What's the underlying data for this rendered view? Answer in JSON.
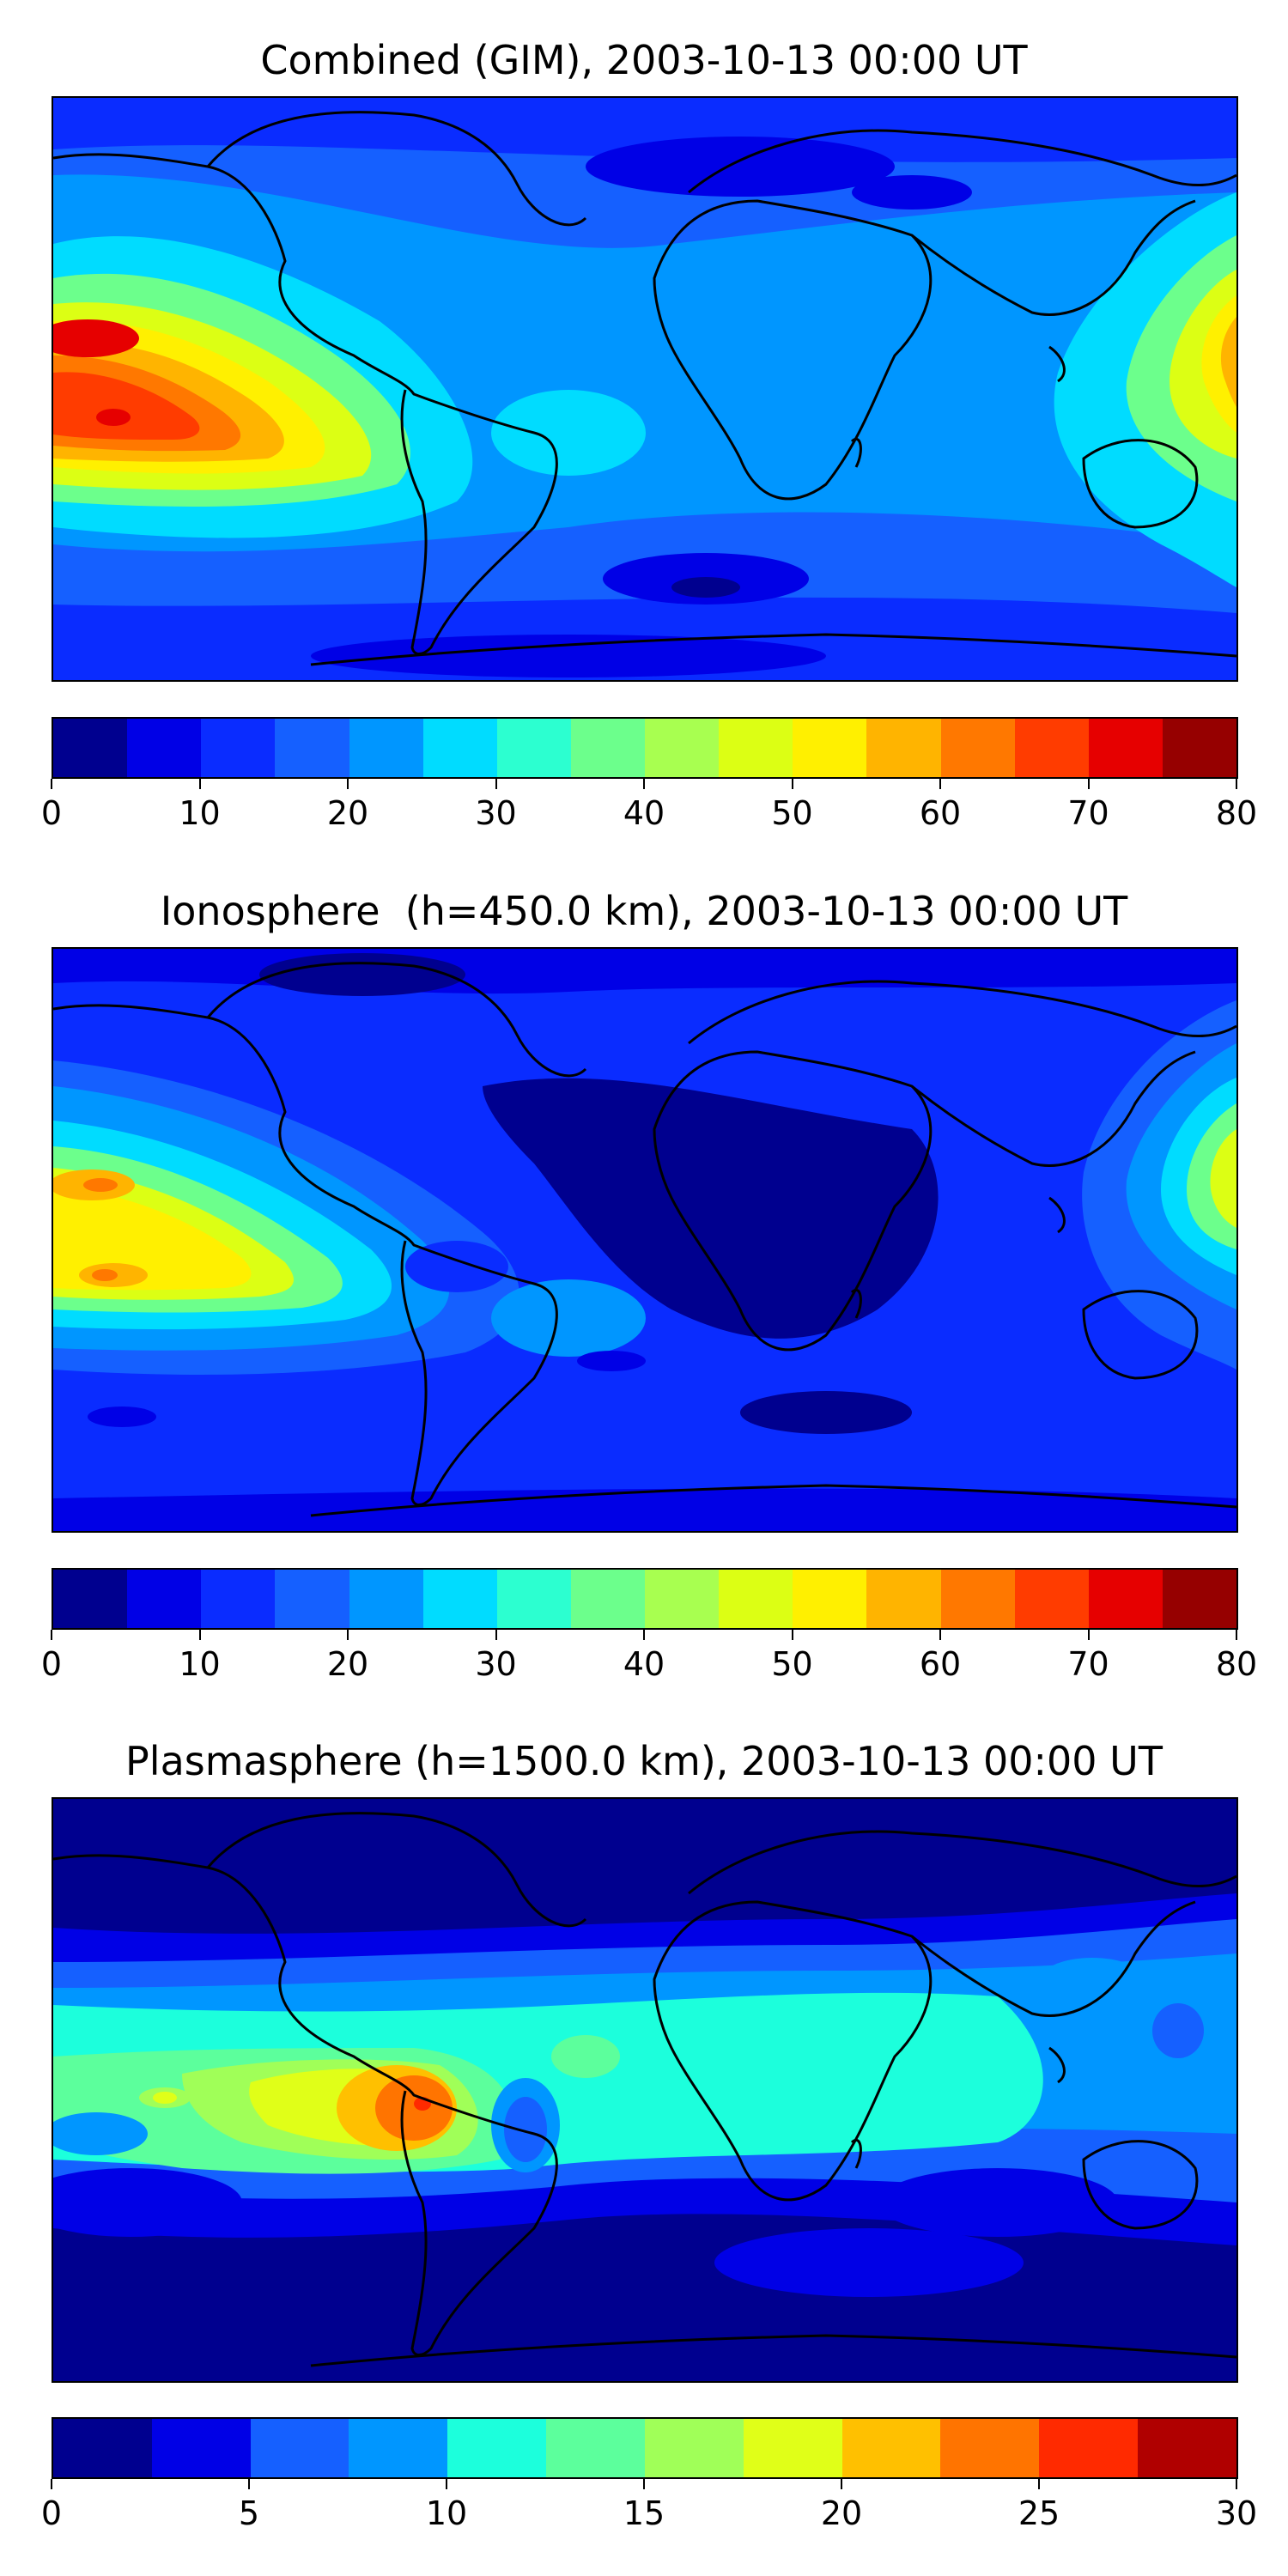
{
  "panels": [
    {
      "title": "Combined (GIM), 2003-10-13 00:00 UT",
      "colorbar": {
        "min": 0,
        "max": 80,
        "tick_labels": [
          "0",
          "10",
          "20",
          "30",
          "40",
          "50",
          "60",
          "70",
          "80"
        ],
        "colors": [
          "#00008f",
          "#0000e6",
          "#0a2cff",
          "#1560ff",
          "#0096ff",
          "#00dcff",
          "#2cffd0",
          "#6cff8c",
          "#a8ff50",
          "#dcff14",
          "#fff000",
          "#ffb400",
          "#ff7800",
          "#ff3c00",
          "#e60000",
          "#960000"
        ]
      }
    },
    {
      "title": "Ionosphere  (h=450.0 km), 2003-10-13 00:00 UT",
      "colorbar": {
        "min": 0,
        "max": 80,
        "tick_labels": [
          "0",
          "10",
          "20",
          "30",
          "40",
          "50",
          "60",
          "70",
          "80"
        ],
        "colors": [
          "#00008f",
          "#0000e6",
          "#0a2cff",
          "#1560ff",
          "#0096ff",
          "#00dcff",
          "#2cffd0",
          "#6cff8c",
          "#a8ff50",
          "#dcff14",
          "#fff000",
          "#ffb400",
          "#ff7800",
          "#ff3c00",
          "#e60000",
          "#960000"
        ]
      }
    },
    {
      "title": "Plasmasphere (h=1500.0 km), 2003-10-13 00:00 UT",
      "colorbar": {
        "min": 0,
        "max": 30,
        "tick_labels": [
          "0",
          "5",
          "10",
          "15",
          "20",
          "25",
          "30"
        ],
        "colors": [
          "#00008f",
          "#0000e6",
          "#1560ff",
          "#0096ff",
          "#1cffdc",
          "#5cff9c",
          "#a0ff58",
          "#e0ff18",
          "#ffc000",
          "#ff7400",
          "#ff2a00",
          "#b00000"
        ]
      }
    }
  ]
}
